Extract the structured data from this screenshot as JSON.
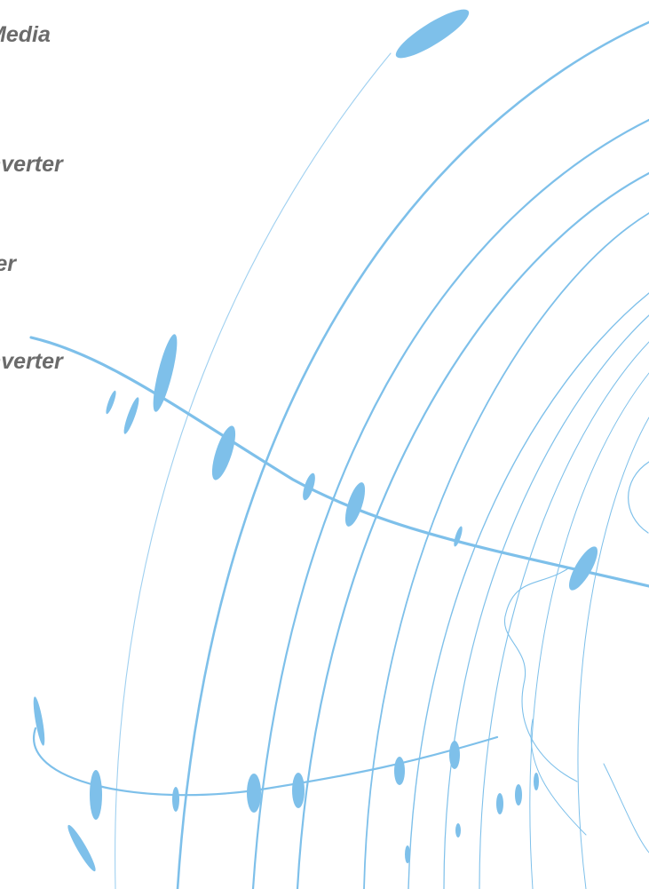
{
  "texts": {
    "line1": "Media",
    "line2": "nverter",
    "line3": "ter",
    "line4": "nverter"
  },
  "colors": {
    "accent": "#7ec0ea",
    "accent_dark": "#5fb0e4",
    "text": "#6b6b6b",
    "background": "#ffffff"
  },
  "graphic": "decorative-blue-arc-lines"
}
